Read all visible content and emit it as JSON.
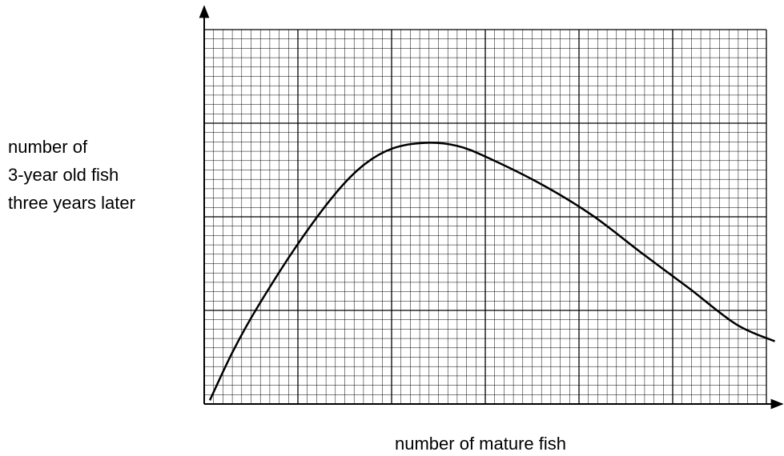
{
  "chart_data": {
    "type": "line",
    "y_label": [
      "number of",
      "3-year old fish",
      "three years later"
    ],
    "x_label": "number of mature fish",
    "x": [
      0.6,
      3.0,
      5.6,
      10,
      14.1,
      17.1,
      20.1,
      23.5,
      26.9,
      30.3,
      36.3,
      41.5,
      46.6,
      51.7,
      56.8,
      60.9
    ],
    "values": [
      0.4,
      5.5,
      10.2,
      17.1,
      22.6,
      25.6,
      27.3,
      27.9,
      27.6,
      26.3,
      23.3,
      20.1,
      16.2,
      12.4,
      8.5,
      6.7
    ],
    "color": "#000000",
    "xlim": [
      0,
      60
    ],
    "ylim": [
      0,
      40
    ],
    "grid": {
      "major": 10,
      "minor": 1
    }
  }
}
